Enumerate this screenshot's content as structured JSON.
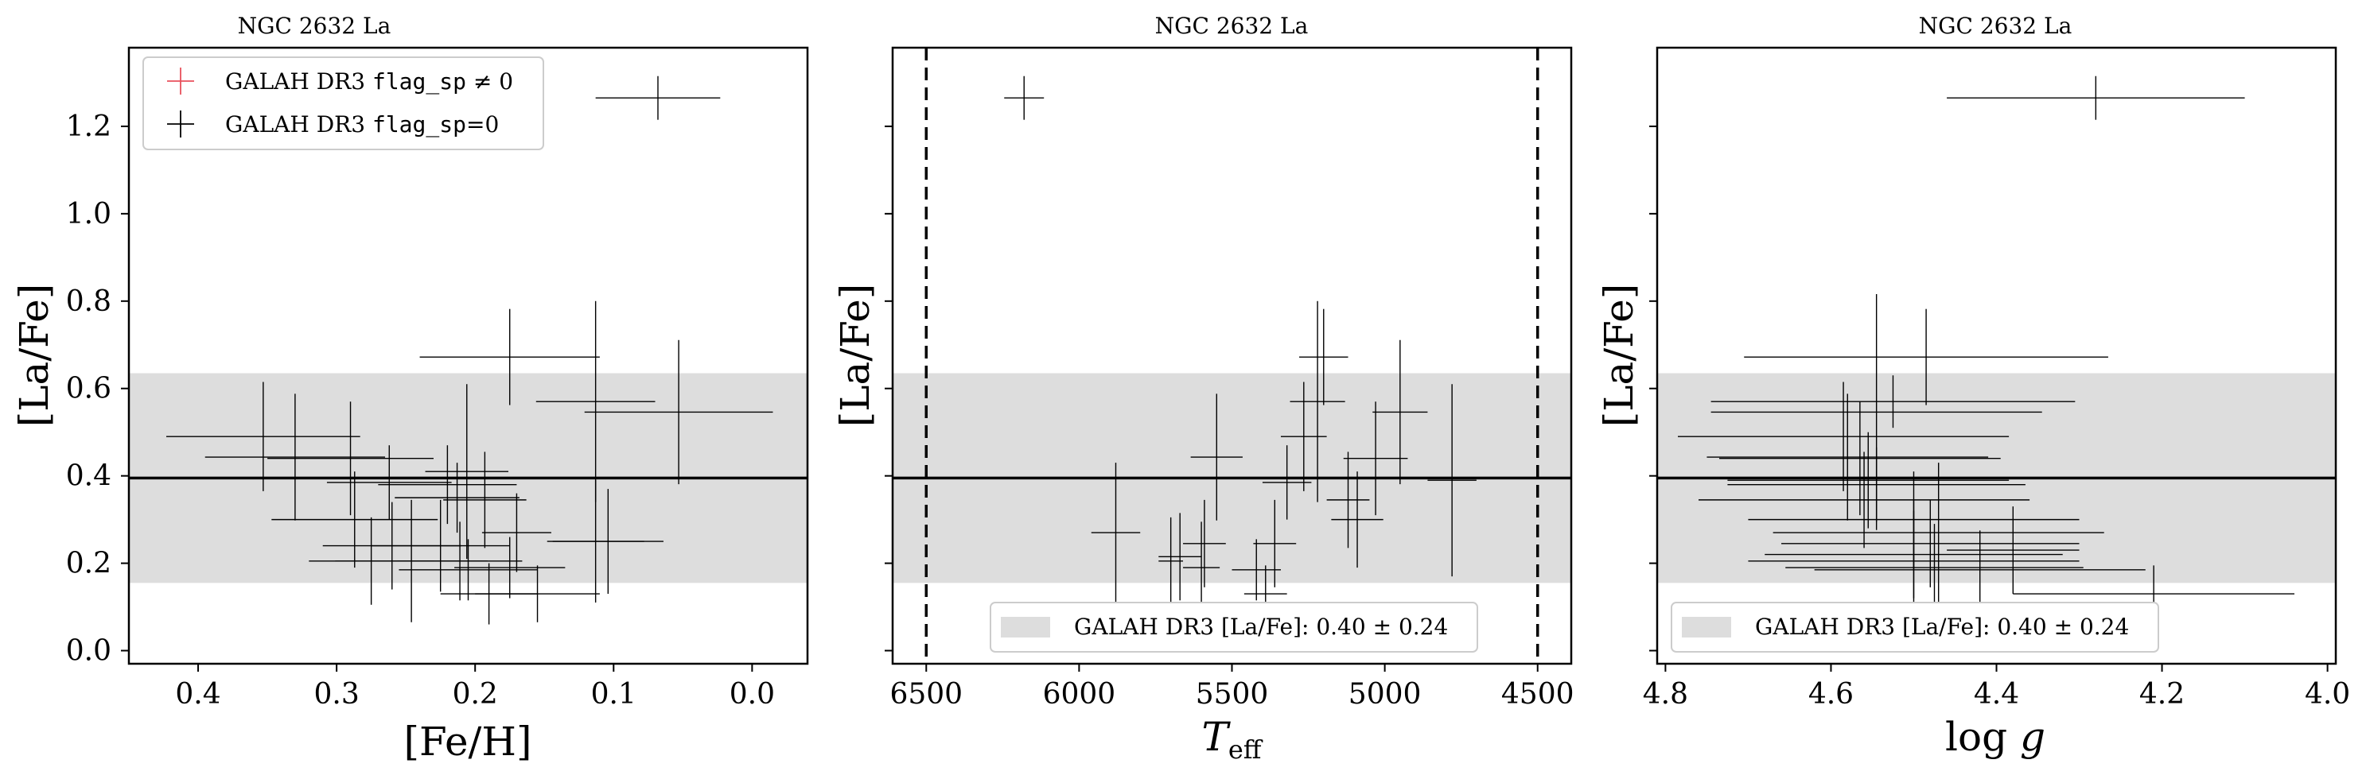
{
  "chart_data": [
    {
      "type": "scatter",
      "title": "NGC 2632 La",
      "xlabel": "[Fe/H]",
      "ylabel": "[La/Fe]",
      "xlim": [
        0.45,
        -0.04
      ],
      "ylim": [
        -0.03,
        1.38
      ],
      "x_ticks": [
        0.4,
        0.3,
        0.2,
        0.1,
        0.0
      ],
      "x_tick_labels": [
        "0.4",
        "0.3",
        "0.2",
        "0.1",
        "0.0"
      ],
      "y_ticks": [
        0.0,
        0.2,
        0.4,
        0.6,
        0.8,
        1.0,
        1.2
      ],
      "y_tick_labels": [
        "0.0",
        "0.2",
        "0.4",
        "0.6",
        "0.8",
        "1.0",
        "1.2"
      ],
      "show_y_tick_labels": true,
      "grid": false,
      "reference": {
        "mean": 0.395,
        "std": 0.24
      },
      "legend": {
        "placement": "top-left",
        "entries": [
          {
            "label": "GALAH DR3 flag_sp ≠ 0",
            "color": "#e8505b"
          },
          {
            "label": "GALAH DR3 flag_sp=0",
            "color": "#000000"
          }
        ]
      },
      "series": [
        {
          "name": "GALAH DR3 flag_sp=0",
          "color": "#000000",
          "points": [
            {
              "x": 0.068,
              "y": 1.265,
              "xerr": 0.045,
              "yerr": 0.05
            },
            {
              "x": 0.175,
              "y": 0.672,
              "xerr": 0.065,
              "yerr": 0.11
            },
            {
              "x": 0.113,
              "y": 0.57,
              "xerr": 0.043,
              "yerr": 0.23
            },
            {
              "x": 0.053,
              "y": 0.546,
              "xerr": 0.068,
              "yerr": 0.165
            },
            {
              "x": 0.353,
              "y": 0.49,
              "xerr": 0.07,
              "yerr": 0.125
            },
            {
              "x": 0.33,
              "y": 0.443,
              "xerr": 0.065,
              "yerr": 0.145
            },
            {
              "x": 0.29,
              "y": 0.44,
              "xerr": 0.06,
              "yerr": 0.13
            },
            {
              "x": 0.287,
              "y": 0.3,
              "xerr": 0.06,
              "yerr": 0.11
            },
            {
              "x": 0.262,
              "y": 0.385,
              "xerr": 0.045,
              "yerr": 0.085
            },
            {
              "x": 0.22,
              "y": 0.38,
              "xerr": 0.05,
              "yerr": 0.09
            },
            {
              "x": 0.213,
              "y": 0.35,
              "xerr": 0.045,
              "yerr": 0.08
            },
            {
              "x": 0.206,
              "y": 0.41,
              "xerr": 0.03,
              "yerr": 0.2
            },
            {
              "x": 0.193,
              "y": 0.345,
              "xerr": 0.03,
              "yerr": 0.11
            },
            {
              "x": 0.17,
              "y": 0.27,
              "xerr": 0.025,
              "yerr": 0.09
            },
            {
              "x": 0.113,
              "y": 0.25,
              "xerr": 0.035,
              "yerr": 0.14
            },
            {
              "x": 0.104,
              "y": 0.25,
              "xerr": 0.04,
              "yerr": 0.12
            },
            {
              "x": 0.26,
              "y": 0.24,
              "xerr": 0.05,
              "yerr": 0.1
            },
            {
              "x": 0.225,
              "y": 0.24,
              "xerr": 0.05,
              "yerr": 0.105
            },
            {
              "x": 0.275,
              "y": 0.205,
              "xerr": 0.045,
              "yerr": 0.1
            },
            {
              "x": 0.246,
              "y": 0.205,
              "xerr": 0.055,
              "yerr": 0.14
            },
            {
              "x": 0.211,
              "y": 0.205,
              "xerr": 0.045,
              "yerr": 0.09
            },
            {
              "x": 0.175,
              "y": 0.19,
              "xerr": 0.04,
              "yerr": 0.07
            },
            {
              "x": 0.205,
              "y": 0.185,
              "xerr": 0.05,
              "yerr": 0.07
            },
            {
              "x": 0.155,
              "y": 0.13,
              "xerr": 0.045,
              "yerr": 0.065
            },
            {
              "x": 0.19,
              "y": 0.13,
              "xerr": 0.035,
              "yerr": 0.07
            }
          ]
        }
      ]
    },
    {
      "type": "scatter",
      "title": "NGC 2632 La",
      "xlabel": "T_eff",
      "ylabel": "[La/Fe]",
      "xlim": [
        6610,
        4390
      ],
      "ylim": [
        -0.03,
        1.38
      ],
      "x_ticks": [
        6500,
        6000,
        5500,
        5000,
        4500
      ],
      "x_tick_labels": [
        "6500",
        "6000",
        "5500",
        "5000",
        "4500"
      ],
      "y_ticks": [
        0.0,
        0.2,
        0.4,
        0.6,
        0.8,
        1.0,
        1.2
      ],
      "y_tick_labels": [
        "0.0",
        "0.2",
        "0.4",
        "0.6",
        "0.8",
        "1.0",
        "1.2"
      ],
      "show_y_tick_labels": false,
      "grid": false,
      "vlines": [
        6500,
        4500
      ],
      "reference": {
        "mean": 0.395,
        "std": 0.24
      },
      "legend": {
        "placement": "bottom-center",
        "entries": [
          {
            "label": "GALAH DR3 [La/Fe]: 0.40 ± 0.24",
            "color": "#dddddd"
          }
        ]
      },
      "series": [
        {
          "name": "GALAH DR3 flag_sp=0",
          "color": "#000000",
          "points": [
            {
              "x": 6180,
              "y": 1.265,
              "xerr": 65,
              "yerr": 0.05
            },
            {
              "x": 5200,
              "y": 0.672,
              "xerr": 80,
              "yerr": 0.11
            },
            {
              "x": 5220,
              "y": 0.57,
              "xerr": 90,
              "yerr": 0.23
            },
            {
              "x": 4950,
              "y": 0.546,
              "xerr": 90,
              "yerr": 0.165
            },
            {
              "x": 5265,
              "y": 0.49,
              "xerr": 75,
              "yerr": 0.125
            },
            {
              "x": 5550,
              "y": 0.443,
              "xerr": 85,
              "yerr": 0.145
            },
            {
              "x": 5030,
              "y": 0.44,
              "xerr": 105,
              "yerr": 0.13
            },
            {
              "x": 4780,
              "y": 0.39,
              "xerr": 80,
              "yerr": 0.22
            },
            {
              "x": 5320,
              "y": 0.385,
              "xerr": 80,
              "yerr": 0.085
            },
            {
              "x": 5120,
              "y": 0.345,
              "xerr": 70,
              "yerr": 0.11
            },
            {
              "x": 5090,
              "y": 0.3,
              "xerr": 85,
              "yerr": 0.11
            },
            {
              "x": 5880,
              "y": 0.27,
              "xerr": 80,
              "yerr": 0.16
            },
            {
              "x": 5360,
              "y": 0.245,
              "xerr": 70,
              "yerr": 0.1
            },
            {
              "x": 5590,
              "y": 0.245,
              "xerr": 70,
              "yerr": 0.1
            },
            {
              "x": 5670,
              "y": 0.215,
              "xerr": 70,
              "yerr": 0.1
            },
            {
              "x": 5600,
              "y": 0.19,
              "xerr": 60,
              "yerr": 0.105
            },
            {
              "x": 5420,
              "y": 0.185,
              "xerr": 80,
              "yerr": 0.07
            },
            {
              "x": 5390,
              "y": 0.13,
              "xerr": 70,
              "yerr": 0.065
            },
            {
              "x": 5700,
              "y": 0.205,
              "xerr": 40,
              "yerr": 0.1
            }
          ]
        }
      ]
    },
    {
      "type": "scatter",
      "title": "NGC 2632 La",
      "xlabel": "log g",
      "ylabel": "[La/Fe]",
      "xlim": [
        4.81,
        3.99
      ],
      "ylim": [
        -0.03,
        1.38
      ],
      "x_ticks": [
        4.8,
        4.6,
        4.4,
        4.2,
        4.0
      ],
      "x_tick_labels": [
        "4.8",
        "4.6",
        "4.4",
        "4.2",
        "4.0"
      ],
      "y_ticks": [
        0.0,
        0.2,
        0.4,
        0.6,
        0.8,
        1.0,
        1.2
      ],
      "y_tick_labels": [
        "0.0",
        "0.2",
        "0.4",
        "0.6",
        "0.8",
        "1.0",
        "1.2"
      ],
      "show_y_tick_labels": false,
      "grid": false,
      "reference": {
        "mean": 0.395,
        "std": 0.24
      },
      "legend": {
        "placement": "bottom-left",
        "entries": [
          {
            "label": "GALAH DR3 [La/Fe]: 0.40 ± 0.24",
            "color": "#dddddd"
          }
        ]
      },
      "series": [
        {
          "name": "GALAH DR3 flag_sp=0",
          "color": "#000000",
          "points": [
            {
              "x": 4.28,
              "y": 1.265,
              "xerr": 0.18,
              "yerr": 0.05
            },
            {
              "x": 4.485,
              "y": 0.672,
              "xerr": 0.22,
              "yerr": 0.11
            },
            {
              "x": 4.525,
              "y": 0.57,
              "xerr": 0.22,
              "yerr": 0.06
            },
            {
              "x": 4.545,
              "y": 0.546,
              "xerr": 0.2,
              "yerr": 0.27
            },
            {
              "x": 4.585,
              "y": 0.49,
              "xerr": 0.2,
              "yerr": 0.125
            },
            {
              "x": 4.58,
              "y": 0.443,
              "xerr": 0.17,
              "yerr": 0.145
            },
            {
              "x": 4.565,
              "y": 0.44,
              "xerr": 0.17,
              "yerr": 0.13
            },
            {
              "x": 4.555,
              "y": 0.39,
              "xerr": 0.17,
              "yerr": 0.11
            },
            {
              "x": 4.545,
              "y": 0.38,
              "xerr": 0.18,
              "yerr": 0.085
            },
            {
              "x": 4.56,
              "y": 0.345,
              "xerr": 0.2,
              "yerr": 0.11
            },
            {
              "x": 4.5,
              "y": 0.3,
              "xerr": 0.2,
              "yerr": 0.11
            },
            {
              "x": 4.47,
              "y": 0.27,
              "xerr": 0.2,
              "yerr": 0.16
            },
            {
              "x": 4.48,
              "y": 0.245,
              "xerr": 0.18,
              "yerr": 0.1
            },
            {
              "x": 4.5,
              "y": 0.22,
              "xerr": 0.18,
              "yerr": 0.1
            },
            {
              "x": 4.5,
              "y": 0.205,
              "xerr": 0.2,
              "yerr": 0.14
            },
            {
              "x": 4.475,
              "y": 0.19,
              "xerr": 0.18,
              "yerr": 0.1
            },
            {
              "x": 4.42,
              "y": 0.185,
              "xerr": 0.2,
              "yerr": 0.09
            },
            {
              "x": 4.38,
              "y": 0.23,
              "xerr": 0.08,
              "yerr": 0.1
            },
            {
              "x": 4.21,
              "y": 0.13,
              "xerr": 0.17,
              "yerr": 0.065
            }
          ]
        }
      ]
    }
  ]
}
